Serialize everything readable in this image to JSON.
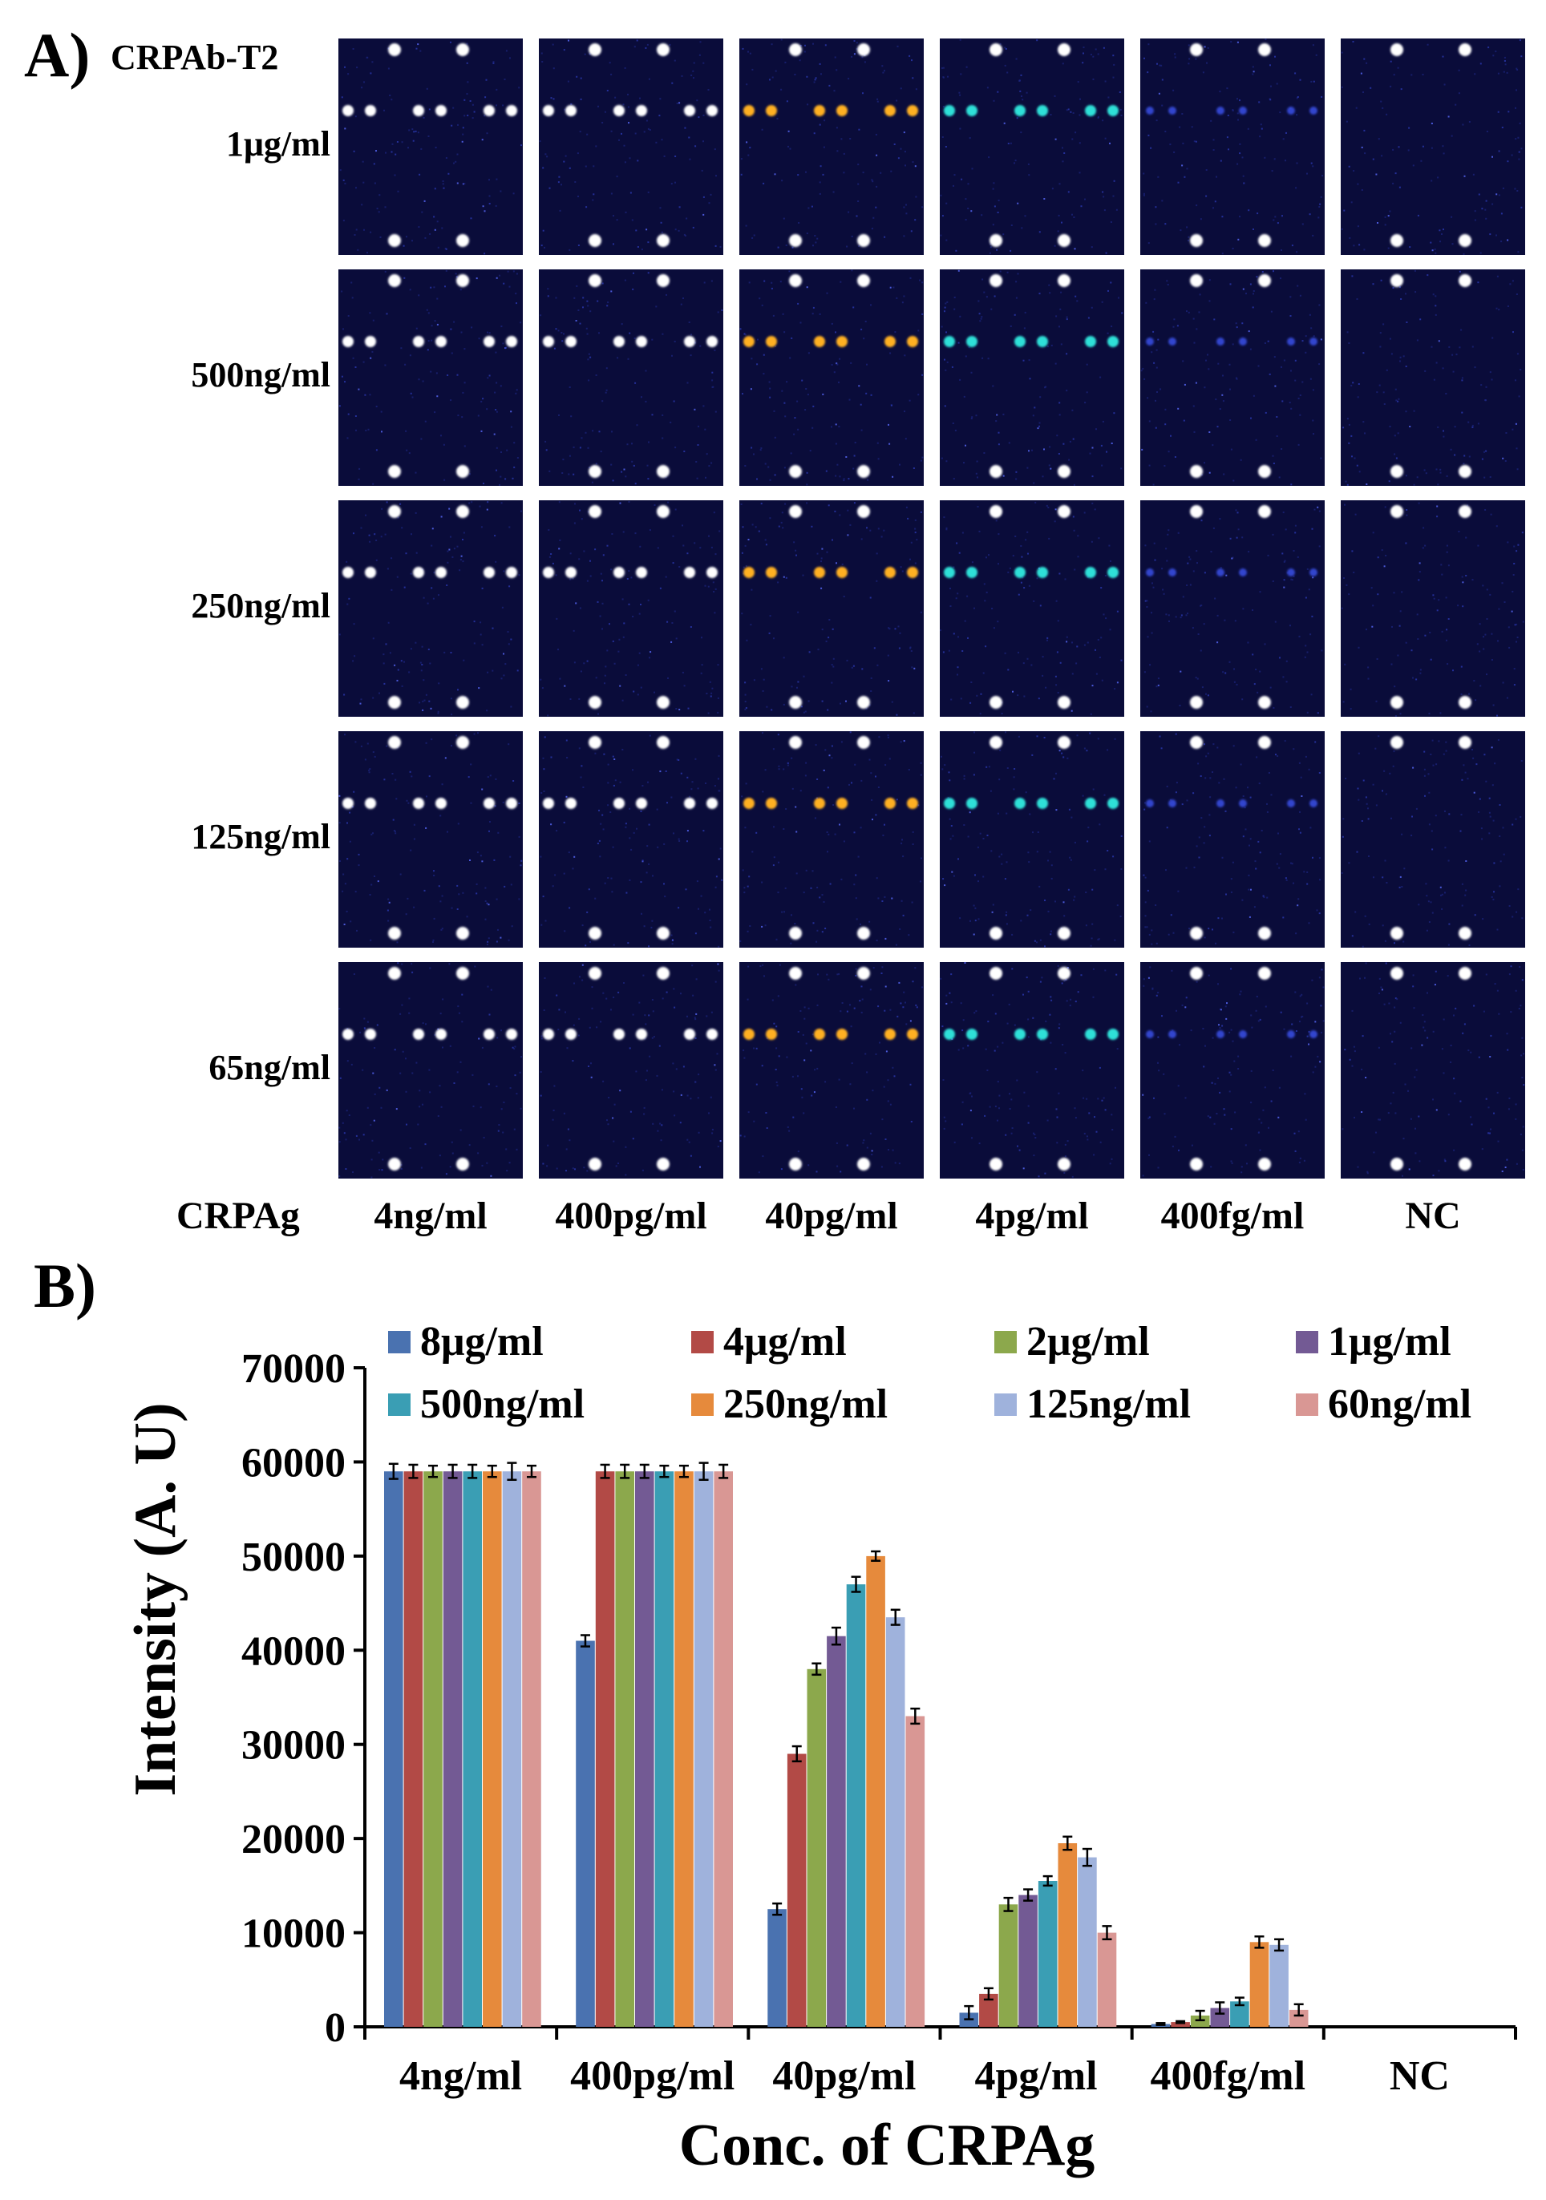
{
  "panel_a": {
    "label": "A)",
    "antibody_label": "CRPAb-T2",
    "antigen_label": "CRPAg",
    "row_labels": [
      "1μg/ml",
      "500ng/ml",
      "250ng/ml",
      "125ng/ml",
      "65ng/ml"
    ],
    "column_labels": [
      "4ng/ml",
      "400pg/ml",
      "40pg/ml",
      "4pg/ml",
      "400fg/ml",
      "NC"
    ],
    "tile_background": "#0a0c3a",
    "marker_spot_color": "#ffffff",
    "signal_colors": [
      "#ffffff",
      "#ffffff",
      "#ffb020",
      "#2ee0d8",
      "#3850e8",
      "#0a0c3a"
    ]
  },
  "panel_b": {
    "label": "B)"
  },
  "chart_data": {
    "type": "bar",
    "title": "",
    "xlabel": "Conc. of CRPAg",
    "ylabel": "Intensity (A. U)",
    "ylim": [
      0,
      70000
    ],
    "yticks": [
      0,
      10000,
      20000,
      30000,
      40000,
      50000,
      60000,
      70000
    ],
    "ytick_labels": [
      "0",
      "10000",
      "20000",
      "30000",
      "40000",
      "50000",
      "60000",
      "70000"
    ],
    "categories": [
      "4ng/ml",
      "400pg/ml",
      "40pg/ml",
      "4pg/ml",
      "400fg/ml",
      "NC"
    ],
    "legend_position": "top",
    "grid": false,
    "series": [
      {
        "name": "8μg/ml",
        "color": "#4a72b0",
        "values": [
          59000,
          41000,
          12500,
          1500,
          300,
          0
        ],
        "errors": [
          800,
          600,
          600,
          700,
          100,
          0
        ]
      },
      {
        "name": "4μg/ml",
        "color": "#b24a46",
        "values": [
          59000,
          59000,
          29000,
          3500,
          500,
          0
        ],
        "errors": [
          700,
          700,
          800,
          600,
          100,
          0
        ]
      },
      {
        "name": "2μg/ml",
        "color": "#8ca84c",
        "values": [
          59000,
          59000,
          38000,
          13000,
          1200,
          0
        ],
        "errors": [
          600,
          700,
          600,
          700,
          500,
          0
        ]
      },
      {
        "name": "1μg/ml",
        "color": "#735a94",
        "values": [
          59000,
          59000,
          41500,
          14000,
          2000,
          0
        ],
        "errors": [
          700,
          700,
          900,
          600,
          600,
          0
        ]
      },
      {
        "name": "500ng/ml",
        "color": "#3a9eb4",
        "values": [
          59000,
          59000,
          47000,
          15500,
          2700,
          0
        ],
        "errors": [
          700,
          600,
          800,
          500,
          400,
          0
        ]
      },
      {
        "name": "250ng/ml",
        "color": "#e68a3c",
        "values": [
          59000,
          59000,
          50000,
          19500,
          9000,
          0
        ],
        "errors": [
          600,
          600,
          500,
          700,
          600,
          0
        ]
      },
      {
        "name": "125ng/ml",
        "color": "#9fb2dc",
        "values": [
          59000,
          59000,
          43500,
          18000,
          8700,
          0
        ],
        "errors": [
          900,
          900,
          800,
          900,
          600,
          0
        ]
      },
      {
        "name": "60ng/ml",
        "color": "#d99794",
        "values": [
          59000,
          59000,
          33000,
          10000,
          1800,
          0
        ],
        "errors": [
          600,
          700,
          800,
          700,
          600,
          0
        ]
      }
    ]
  }
}
